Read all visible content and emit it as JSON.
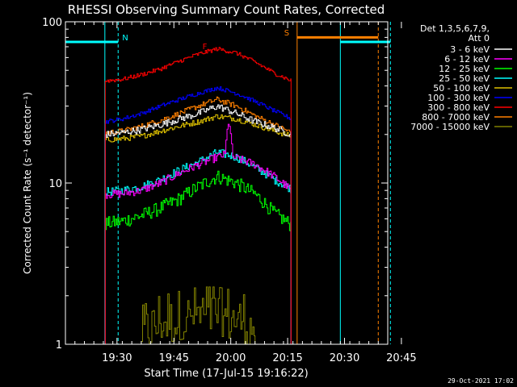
{
  "chart_data": {
    "type": "line",
    "title": "RHESSI Observing Summary Count Rates, Corrected",
    "xlabel": "Start Time (17-Jul-15 19:16:22)",
    "ylabel": "Corrected Count Rate (s⁻¹ detector⁻¹)",
    "yscale": "log",
    "ylim": [
      1,
      100
    ],
    "xlim_minutes": [
      0,
      85
    ],
    "xtick_labels": [
      {
        "label": "19:30",
        "t": 13.6
      },
      {
        "label": "19:45",
        "t": 28.6
      },
      {
        "label": "20:00",
        "t": 43.6
      },
      {
        "label": "20:15",
        "t": 58.6
      },
      {
        "label": "20:30",
        "t": 73.6
      },
      {
        "label": "20:45",
        "t": 88.6
      }
    ],
    "ytick_labels": [
      {
        "label": "1",
        "v": 1
      },
      {
        "label": "10",
        "v": 10
      },
      {
        "label": "100",
        "v": 100
      }
    ],
    "legend_header": [
      "Det 1,3,5,6,7,9,",
      "Att 0"
    ],
    "legend_placement": "top-right outside",
    "series": [
      {
        "name": "3 - 6 keV",
        "color": "#ffffff",
        "x": [
          10.5,
          15,
          20,
          25,
          30,
          35,
          40,
          45,
          50,
          55,
          59.5
        ],
        "values": [
          20,
          20.5,
          21.5,
          23,
          25,
          27,
          30,
          27,
          24,
          22,
          20
        ],
        "noise": 0.05
      },
      {
        "name": "6 - 12 keV",
        "color": "#ff00ff",
        "x": [
          10.5,
          15,
          20,
          25,
          30,
          35,
          40,
          42,
          43,
          44,
          46,
          50,
          55,
          59.5
        ],
        "values": [
          8.5,
          8.6,
          9,
          10,
          11.5,
          13,
          14.5,
          15,
          25,
          14.5,
          14,
          13,
          11,
          9
        ],
        "noise": 0.06
      },
      {
        "name": "12 - 25 keV",
        "color": "#00ff00",
        "x": [
          10.5,
          15,
          20,
          25,
          30,
          35,
          40,
          45,
          50,
          55,
          59.5
        ],
        "values": [
          5.6,
          5.8,
          6.3,
          7,
          8,
          9.5,
          11,
          10,
          8.5,
          6.5,
          5.5
        ],
        "noise": 0.1
      },
      {
        "name": "25 - 50 keV",
        "color": "#00ffff",
        "x": [
          10.5,
          15,
          20,
          25,
          30,
          35,
          40,
          45,
          50,
          55,
          59.5
        ],
        "values": [
          8.8,
          9,
          9.5,
          10.5,
          12,
          13.5,
          15.5,
          14.5,
          12.5,
          10.5,
          9.2
        ],
        "noise": 0.06
      },
      {
        "name": "50 - 100 keV",
        "color": "#ddc000",
        "x": [
          10.5,
          15,
          20,
          25,
          30,
          35,
          40,
          45,
          50,
          55,
          59.5
        ],
        "values": [
          18.5,
          18.8,
          19.5,
          21,
          22.5,
          24,
          26,
          25,
          23,
          21,
          19.5
        ],
        "noise": 0.04
      },
      {
        "name": "100 - 300 keV",
        "color": "#0000ff",
        "x": [
          10.5,
          15,
          20,
          25,
          30,
          35,
          40,
          45,
          50,
          55,
          59.5
        ],
        "values": [
          24,
          25,
          27,
          30,
          33,
          36,
          39,
          36,
          32,
          28,
          25
        ],
        "noise": 0.03
      },
      {
        "name": "300 - 800 keV",
        "color": "#ff0000",
        "x": [
          10.5,
          15,
          20,
          25,
          30,
          35,
          40,
          45,
          50,
          55,
          59.5
        ],
        "values": [
          43,
          44,
          47,
          51,
          57,
          63,
          68,
          64,
          56,
          48,
          43
        ],
        "noise": 0.03
      },
      {
        "name": "800 - 7000 keV",
        "color": "#ff8000",
        "x": [
          10.5,
          15,
          20,
          25,
          30,
          35,
          40,
          45,
          50,
          55,
          59.5
        ],
        "values": [
          20.5,
          21,
          22.5,
          24.5,
          27,
          30,
          33,
          30,
          26,
          23,
          20.5
        ],
        "noise": 0.04
      },
      {
        "name": "7000 - 15000 keV",
        "color": "#808000",
        "x": [
          20,
          25,
          30,
          35,
          40,
          45,
          50
        ],
        "values": [
          1.3,
          1.5,
          1.6,
          1.7,
          1.7,
          1.6,
          1.4
        ],
        "noise": 0.3
      }
    ],
    "vertical_markers": [
      {
        "t": 10.4,
        "color": "#00ffff",
        "style": "solid"
      },
      {
        "t": 13.9,
        "color": "#00ffff",
        "style": "dashed"
      },
      {
        "t": 61.1,
        "color": "#ff8000",
        "style": "solid"
      },
      {
        "t": 72.5,
        "color": "#00ffff",
        "style": "solid"
      },
      {
        "t": 82.5,
        "color": "#ff8000",
        "style": "dashed"
      },
      {
        "t": 85.7,
        "color": "#00ffff",
        "style": "dashed"
      }
    ],
    "bars": [
      {
        "label": "N",
        "color": "#00ffff",
        "t0": 0,
        "t1": 13.9,
        "v": 75
      },
      {
        "label": "S",
        "color": "#ff8000",
        "t0": 61.1,
        "t1": 82.5,
        "v": 80
      },
      {
        "label": "",
        "color": "#00ffff",
        "t0": 72.5,
        "t1": 85.7,
        "v": 75
      }
    ],
    "flare_marker": {
      "label": "F",
      "color": "#ff0000",
      "t": 37.0
    },
    "timestamp": "29-Oct-2021 17:02"
  }
}
